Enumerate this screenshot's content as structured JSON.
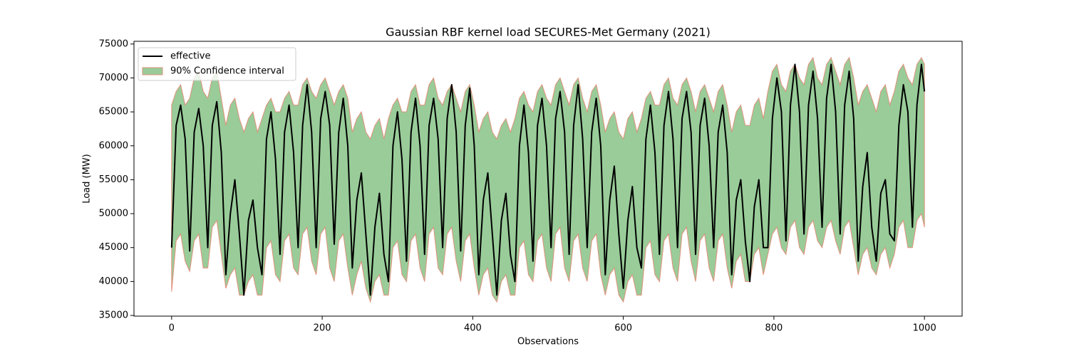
{
  "chart_data": {
    "type": "line",
    "title": "Gaussian RBF kernel load SECURES-Met Germany (2021)",
    "x_label": "Observations",
    "y_label": "Load (MW)",
    "xlim": [
      -50,
      1050
    ],
    "ylim": [
      34900,
      75400
    ],
    "xticks": [
      0,
      200,
      400,
      600,
      800,
      1000
    ],
    "yticks": [
      35000,
      40000,
      45000,
      50000,
      55000,
      60000,
      65000,
      70000,
      75000
    ],
    "legend": "upper left",
    "x": [
      0,
      6,
      12,
      18,
      24,
      30,
      36,
      42,
      48,
      54,
      60,
      66,
      72,
      78,
      84,
      90,
      96,
      102,
      108,
      114,
      120,
      126,
      132,
      138,
      144,
      150,
      156,
      162,
      168,
      174,
      180,
      186,
      192,
      198,
      204,
      210,
      216,
      222,
      228,
      234,
      240,
      246,
      252,
      258,
      264,
      270,
      276,
      282,
      288,
      294,
      300,
      306,
      312,
      318,
      324,
      330,
      336,
      342,
      348,
      354,
      360,
      366,
      372,
      378,
      384,
      390,
      396,
      402,
      408,
      414,
      420,
      426,
      432,
      438,
      444,
      450,
      456,
      462,
      468,
      474,
      480,
      486,
      492,
      498,
      504,
      510,
      516,
      522,
      528,
      534,
      540,
      546,
      552,
      558,
      564,
      570,
      576,
      582,
      588,
      594,
      600,
      606,
      612,
      618,
      624,
      630,
      636,
      642,
      648,
      654,
      660,
      666,
      672,
      678,
      684,
      690,
      696,
      702,
      708,
      714,
      720,
      726,
      732,
      738,
      744,
      750,
      756,
      762,
      768,
      774,
      780,
      786,
      792,
      798,
      804,
      810,
      816,
      822,
      828,
      834,
      840,
      846,
      852,
      858,
      864,
      870,
      876,
      882,
      888,
      894,
      900,
      906,
      912,
      918,
      924,
      930,
      936,
      942,
      948,
      954,
      960,
      966,
      972,
      978,
      984,
      990,
      996,
      1000
    ],
    "series": [
      {
        "name": "effective",
        "type": "line",
        "color": "#000000",
        "values": [
          45000,
          63000,
          66000,
          61000,
          44500,
          62000,
          65500,
          60000,
          45000,
          63000,
          66500,
          59000,
          41000,
          50000,
          55000,
          47000,
          38000,
          49000,
          52000,
          45000,
          41000,
          61000,
          65000,
          58000,
          44000,
          62000,
          66000,
          59000,
          45000,
          63000,
          69000,
          62000,
          45000,
          64000,
          68000,
          63000,
          45500,
          62000,
          67000,
          60000,
          42000,
          52000,
          56000,
          47000,
          38000,
          48000,
          53000,
          44000,
          40000,
          60000,
          65000,
          58000,
          43000,
          62000,
          67000,
          60000,
          44000,
          63000,
          67000,
          61000,
          45000,
          64000,
          69000,
          62000,
          44500,
          63000,
          68500,
          60000,
          41000,
          52000,
          56000,
          47000,
          38000,
          49000,
          53000,
          44000,
          40000,
          60000,
          66000,
          59000,
          43000,
          63000,
          67000,
          60000,
          45000,
          64000,
          68000,
          62000,
          44000,
          63000,
          69000,
          61000,
          45000,
          62000,
          67000,
          60000,
          41000,
          52000,
          57000,
          47000,
          39000,
          49000,
          54000,
          45000,
          42000,
          61000,
          66000,
          59000,
          44000,
          63000,
          68000,
          61000,
          45000,
          64000,
          68000,
          62000,
          44000,
          63000,
          67000,
          60000,
          45000,
          62000,
          66000,
          59000,
          41000,
          52000,
          55000,
          46000,
          40000,
          51000,
          55000,
          45000,
          45000,
          64000,
          70000,
          65000,
          46000,
          66000,
          72000,
          65000,
          47000,
          66000,
          71000,
          64000,
          48000,
          67000,
          72000,
          65000,
          47000,
          66000,
          71000,
          64000,
          43000,
          54000,
          59000,
          48000,
          43000,
          53000,
          55000,
          47000,
          46000,
          63000,
          69000,
          65000,
          48000,
          66000,
          72000,
          68000
        ]
      },
      {
        "name": "90% Confidence interval",
        "type": "band",
        "color": "#99cc99",
        "edgecolor": "#e0907a",
        "upper": [
          66000,
          68000,
          69000,
          66000,
          67000,
          70000,
          71000,
          68000,
          67000,
          70000,
          71000,
          67000,
          63000,
          66000,
          67000,
          64000,
          62000,
          64000,
          65000,
          62000,
          64000,
          66000,
          67000,
          65000,
          65000,
          67000,
          68000,
          66000,
          66000,
          69000,
          70000,
          68000,
          67000,
          69000,
          70000,
          68000,
          66000,
          68000,
          69000,
          67000,
          62000,
          64000,
          65000,
          62000,
          61000,
          63000,
          64000,
          61000,
          64000,
          66000,
          67000,
          65000,
          65000,
          68000,
          69000,
          66000,
          66000,
          69000,
          70000,
          67000,
          66000,
          68000,
          69000,
          67000,
          65000,
          68000,
          69000,
          66000,
          62000,
          64000,
          65000,
          62000,
          61000,
          63000,
          64000,
          62000,
          64000,
          67000,
          68000,
          66000,
          65000,
          68000,
          69000,
          67000,
          66000,
          69000,
          70000,
          68000,
          66000,
          69000,
          70000,
          67000,
          65000,
          68000,
          69000,
          66000,
          62000,
          64000,
          65000,
          62000,
          61000,
          64000,
          65000,
          62000,
          64000,
          67000,
          68000,
          66000,
          66000,
          69000,
          70000,
          67000,
          66000,
          69000,
          70000,
          68000,
          65000,
          68000,
          69000,
          67000,
          65000,
          68000,
          69000,
          66000,
          62000,
          65000,
          66000,
          63000,
          63000,
          66000,
          67000,
          64000,
          68000,
          71000,
          72000,
          69000,
          68000,
          71000,
          72000,
          70000,
          69000,
          72000,
          73000,
          70000,
          69000,
          72000,
          73000,
          71000,
          69000,
          72000,
          73000,
          70000,
          66000,
          68000,
          69000,
          67000,
          65000,
          68000,
          69000,
          66000,
          68000,
          71000,
          72000,
          70000,
          69000,
          72000,
          73000,
          72000
        ],
        "lower": [
          38500,
          46000,
          47000,
          43000,
          41500,
          46000,
          47000,
          42000,
          42000,
          48000,
          49000,
          44000,
          39000,
          41000,
          42000,
          38000,
          38000,
          40000,
          41000,
          38000,
          38000,
          45000,
          46000,
          41000,
          40000,
          46000,
          47000,
          42000,
          41000,
          47000,
          48000,
          43000,
          41000,
          47000,
          48000,
          42000,
          40000,
          46000,
          47000,
          42000,
          38000,
          41000,
          43000,
          39000,
          37000,
          40000,
          41000,
          38000,
          38000,
          45000,
          46000,
          41000,
          40000,
          46000,
          47000,
          42000,
          40000,
          47000,
          48000,
          42000,
          41000,
          47000,
          48000,
          43000,
          40000,
          46000,
          47000,
          42000,
          38000,
          41000,
          42000,
          38000,
          37000,
          40000,
          41000,
          38000,
          38000,
          45000,
          46000,
          41000,
          40000,
          46000,
          47000,
          42000,
          40000,
          47000,
          48000,
          42000,
          40000,
          46000,
          47000,
          42000,
          40000,
          46000,
          47000,
          41000,
          38000,
          41000,
          42000,
          38000,
          37000,
          40000,
          41000,
          38000,
          38000,
          45000,
          46000,
          41000,
          40000,
          46000,
          47000,
          42000,
          40000,
          47000,
          48000,
          43000,
          40000,
          46000,
          47000,
          42000,
          40000,
          46000,
          47000,
          42000,
          39000,
          43000,
          44000,
          40000,
          40000,
          44000,
          45000,
          41000,
          44000,
          47000,
          48000,
          45000,
          44000,
          48000,
          49000,
          45000,
          44000,
          48000,
          49000,
          46000,
          45000,
          48000,
          49000,
          46000,
          44000,
          48000,
          49000,
          45000,
          41000,
          44000,
          45000,
          42000,
          41000,
          44000,
          45000,
          42000,
          44000,
          48000,
          49000,
          45000,
          45000,
          49000,
          50000,
          48000
        ]
      }
    ]
  }
}
